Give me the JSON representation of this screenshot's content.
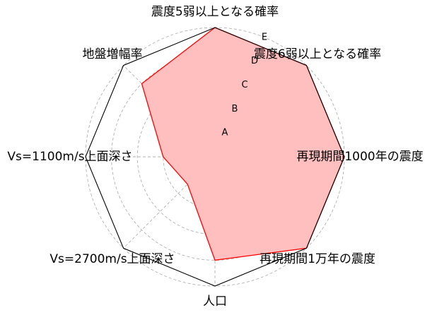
{
  "chart_data": {
    "type": "radar",
    "title": "",
    "axes": [
      "震度5弱以上となる確率",
      "震度6弱以上となる確率",
      "再現期間1000年の震度",
      "再現期間1万年の震度",
      "人口",
      "Vs=2700m/s上面深さ",
      "Vs=1100m/s上面深さ",
      "地盤増幅率"
    ],
    "ring_labels": [
      "A",
      "B",
      "C",
      "D",
      "E"
    ],
    "rmax": 5,
    "series": [
      {
        "values": [
          5,
          5,
          5,
          5,
          4,
          1.5,
          2,
          4
        ],
        "fill": "#ffbfbf",
        "stroke": "#ff0000"
      }
    ],
    "grid": true,
    "colors": {
      "outline": "#000000",
      "grid": "#b0b0b0"
    }
  }
}
